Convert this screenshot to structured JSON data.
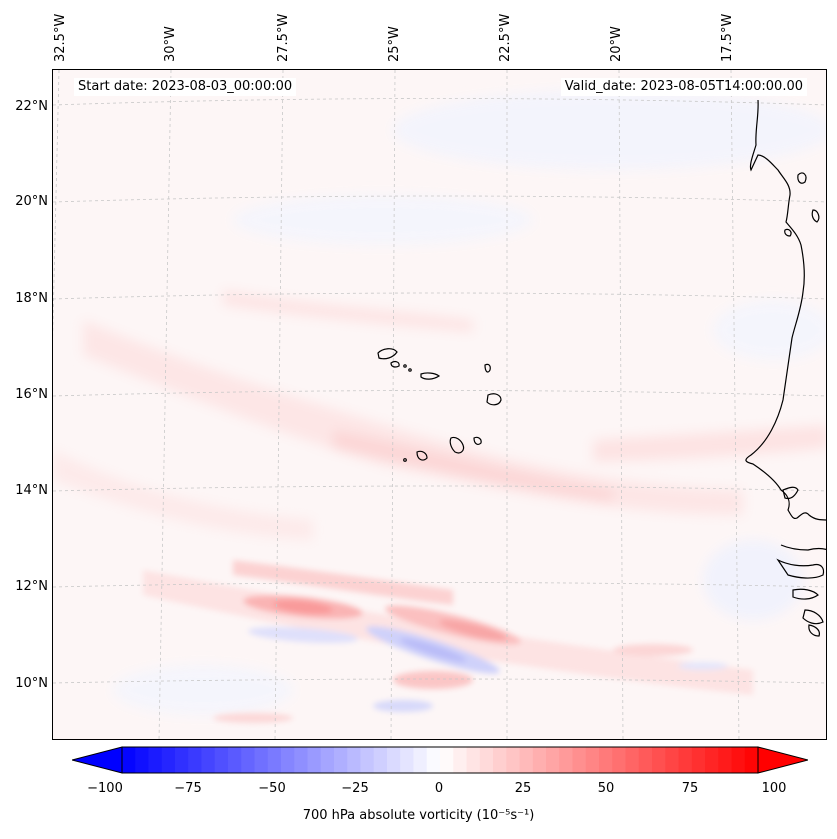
{
  "header": {
    "start_date": "Start date: 2023-08-03_00:00:00",
    "valid_date": "Valid_date: 2023-08-05T14:00:00.00"
  },
  "axes": {
    "lon_labels": [
      "32.5°W",
      "30°W",
      "27.5°W",
      "25°W",
      "22.5°W",
      "20°W",
      "17.5°W"
    ],
    "lat_labels": [
      "22°N",
      "20°N",
      "18°N",
      "16°N",
      "14°N",
      "12°N",
      "10°N"
    ]
  },
  "colorbar": {
    "min": -100,
    "max": 100,
    "ticks": [
      "−100",
      "−75",
      "−50",
      "−25",
      "0",
      "25",
      "50",
      "75",
      "100"
    ],
    "label": "700 hPa absolute vorticity (10⁻⁵s⁻¹)",
    "cmap": [
      "#0000ff",
      "#ffffff",
      "#ff0000"
    ]
  },
  "colors": {
    "coast": "#000000",
    "grid": "#c8c8c8",
    "background": "#fdf6f6"
  }
}
